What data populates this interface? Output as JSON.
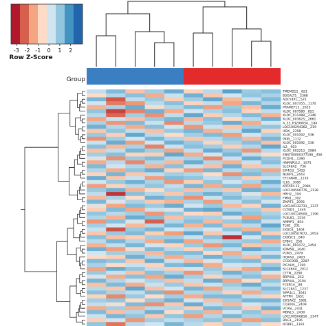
{
  "chart_data": {
    "type": "heatmap",
    "legend": {
      "title": "Row Z-Score",
      "ticks": [
        "-3",
        "-2",
        "-1",
        "0",
        "1",
        "2"
      ],
      "colors": [
        "#b2182b",
        "#d6604d",
        "#f4a582",
        "#fddbc7",
        "#d1e5f0",
        "#92c5de",
        "#4393c3",
        "#2166ac"
      ]
    },
    "group_label": "Group",
    "groups": [
      {
        "name": "",
        "color": "#3a7fc1",
        "count": 5
      },
      {
        "name": "",
        "color": "#e32b2b",
        "count": 5
      }
    ],
    "columns": 10,
    "genes": [
      "TMEM212__821",
      "B3GALT1__2368",
      "ADCY4P1__525",
      "XLOC_007355__1170",
      "PRAMEF13__2025",
      "XLOC_007580__851",
      "XLOC_011488__2346",
      "XLOC_003625__2661",
      "A_33_P3299054__184",
      "LOC100294362__219",
      "HDX__2358",
      "XLOC_001092__536",
      "PKIB__1112",
      "XLOC_001092__536",
      "IL2__903",
      "XLOC_002213__2984",
      "ENST00000377198__456",
      "PCDH1__1390",
      "HNRNPUL2__1075",
      "SLC46A2__736",
      "EIF4G3__1422",
      "NUBP1__2443",
      "EFCAB4B__1130",
      "IL18__3088",
      "KRTAP4.12__2084",
      "LOC100506776__2138",
      "HRH2__194",
      "FMN1__302",
      "ZMAT3__2095",
      "LOC100132731__1137",
      "CLTSD1__1445",
      "LOC100128509__1196",
      "PLSL81__1534",
      "AMMP1__854",
      "TLN1__231",
      "EXOC6__1404",
      "LOC100507672__2953",
      "EXOSC3__640",
      "EPB41__258",
      "XLOC_001072__2454",
      "KDM5B__2040",
      "PLIN3__2479",
      "HOXA9__2403",
      "CCDC90B__2287",
      "PICALM__1190",
      "SLC46A4__2012",
      "CTTN__2290",
      "BRP44L__212",
      "BRP44L__2104",
      "FCER1A__89",
      "SLC18A1__1237",
      "SIPA1L1__1642",
      "AFTPH__1651",
      "EIF2AK2__1901",
      "CD300E__2409",
      "VCAN__2431",
      "MBNL3__2430",
      "LOC100506816__2147",
      "BAG1__2196",
      "RCBB1__1181"
    ],
    "values": [
      [
        0.4,
        1.2,
        -0.6,
        0.8,
        1.5,
        -0.3,
        0.5,
        1.7,
        0.9,
        1.1
      ],
      [
        -0.2,
        0.6,
        1.1,
        -0.9,
        0.3,
        1.4,
        -0.5,
        0.2,
        1.0,
        0.7
      ],
      [
        1.3,
        -2.1,
        0.4,
        0.9,
        -0.4,
        0.8,
        1.6,
        -0.7,
        0.3,
        1.2
      ],
      [
        0.2,
        -1.6,
        -1.2,
        0.5,
        1.1,
        -0.3,
        0.4,
        -1.0,
        1.3,
        0.6
      ],
      [
        -0.8,
        0.7,
        1.5,
        -0.1,
        0.6,
        1.2,
        -1.1,
        0.9,
        -0.6,
        1.5
      ],
      [
        1.0,
        -2.4,
        -1.5,
        1.4,
        -0.9,
        0.2,
        0.7,
        1.1,
        -0.3,
        0.4
      ],
      [
        0.5,
        -1.9,
        0.8,
        -1.3,
        0.4,
        1.6,
        -0.4,
        0.6,
        1.2,
        -0.8
      ],
      [
        -1.0,
        0.3,
        -0.6,
        0.9,
        1.3,
        -0.7,
        1.1,
        -0.2,
        0.5,
        1.4
      ],
      [
        0.7,
        -1.2,
        1.2,
        0.3,
        -1.4,
        0.5,
        0.9,
        1.5,
        -0.9,
        0.2
      ],
      [
        1.4,
        0.6,
        -0.9,
        1.1,
        0.2,
        -1.2,
        0.3,
        -0.5,
        0.8,
        1.0
      ],
      [
        -0.5,
        1.0,
        0.4,
        -0.6,
        0.9,
        1.3,
        -0.8,
        0.4,
        1.6,
        -0.3
      ],
      [
        0.9,
        -0.4,
        1.6,
        0.5,
        -0.2,
        0.8,
        1.2,
        -1.1,
        0.2,
        0.7
      ],
      [
        -1.3,
        0.8,
        0.2,
        1.3,
        0.6,
        -0.5,
        0.5,
        1.0,
        -0.7,
        1.3
      ],
      [
        0.3,
        1.5,
        -1.1,
        0.2,
        1.4,
        0.9,
        -0.3,
        0.7,
        1.1,
        -0.6
      ],
      [
        1.1,
        -0.7,
        0.7,
        -1.5,
        0.3,
        1.1,
        0.8,
        -0.4,
        0.6,
        1.6
      ],
      [
        -0.6,
        0.4,
        1.3,
        0.8,
        -1.0,
        0.4,
        1.5,
        0.9,
        -1.2,
        0.5
      ],
      [
        0.8,
        1.1,
        -0.3,
        -0.4,
        1.6,
        -0.9,
        0.2,
        1.3,
        0.4,
        -0.2
      ],
      [
        0.1,
        -1.3,
        0.9,
        1.2,
        0.5,
        0.7,
        -1.4,
        0.3,
        1.5,
        0.9
      ],
      [
        -0.9,
        0.5,
        -1.4,
        0.6,
        -0.7,
        1.5,
        0.6,
        -0.8,
        0.3,
        1.1
      ],
      [
        1.2,
        0.2,
        0.6,
        -0.8,
        1.1,
        0.3,
        -0.6,
        1.4,
        -0.5,
        0.4
      ],
      [
        0.6,
        -0.9,
        1.0,
        1.5,
        -0.3,
        -1.1,
        1.3,
        0.5,
        0.9,
        -1.0
      ],
      [
        -0.3,
        1.3,
        -0.5,
        0.4,
        0.8,
        0.6,
        -0.2,
        -1.3,
        1.2,
        0.8
      ],
      [
        1.5,
        -0.5,
        0.3,
        -1.1,
        1.2,
        1.0,
        0.4,
        0.8,
        -0.4,
        0.3
      ],
      [
        0.2,
        0.9,
        1.4,
        0.7,
        -1.2,
        -0.4,
        1.0,
        0.2,
        0.7,
        1.5
      ],
      [
        -1.1,
        -0.3,
        0.5,
        1.0,
        0.4,
        1.3,
        -0.9,
        1.1,
        -1.0,
        0.6
      ],
      [
        0.9,
        1.4,
        -0.8,
        -0.2,
        0.7,
        -0.6,
        0.6,
        -0.5,
        1.4,
        1.2
      ],
      [
        0.4,
        -2.6,
        1.1,
        0.6,
        -0.5,
        0.9,
        1.4,
        0.8,
        0.1,
        -0.7
      ],
      [
        -0.7,
        0.7,
        -0.2,
        1.4,
        1.0,
        -1.3,
        0.3,
        1.2,
        0.6,
        0.9
      ],
      [
        1.3,
        0.1,
        0.7,
        -0.5,
        -0.8,
        0.7,
        -1.1,
        0.4,
        1.1,
        0.2
      ],
      [
        0.0,
        -1.0,
        1.2,
        0.9,
        1.5,
        0.2,
        0.9,
        -0.7,
        -0.3,
        1.4
      ],
      [
        -0.4,
        1.2,
        -1.0,
        0.3,
        0.1,
        1.4,
        1.6,
        0.6,
        0.8,
        -0.5
      ],
      [
        1.0,
        0.5,
        0.8,
        -1.2,
        0.9,
        -0.2,
        -0.4,
        1.5,
        1.0,
        0.7
      ],
      [
        0.6,
        -0.8,
        1.5,
        1.1,
        -0.6,
        0.8,
        0.7,
        0.1,
        -1.1,
        1.0
      ],
      [
        -1.2,
        1.1,
        0.1,
        -2.0,
        0.6,
        1.1,
        -0.7,
        0.9,
        1.3,
        0.3
      ],
      [
        0.8,
        0.2,
        -0.7,
        0.5,
        1.3,
        -0.8,
        1.2,
        -0.6,
        0.5,
        1.6
      ],
      [
        0.3,
        -2.2,
        0.9,
        1.3,
        0.2,
        0.5,
        0.2,
        1.0,
        -0.8,
        0.8
      ],
      [
        -0.5,
        0.9,
        1.2,
        -0.4,
        -1.1,
        1.6,
        -0.5,
        0.3,
        1.4,
        -0.4
      ],
      [
        1.1,
        -0.6,
        -0.4,
        0.8,
        0.8,
        0.3,
        1.1,
        -2.7,
        0.2,
        1.2
      ],
      [
        0.5,
        1.3,
        0.6,
        -0.9,
        1.4,
        -1.0,
        0.5,
        0.7,
        0.9,
        -0.9
      ],
      [
        -0.8,
        0.4,
        1.3,
        0.2,
        -0.3,
        0.9,
        -1.2,
        1.3,
        -0.5,
        0.6
      ],
      [
        1.4,
        -1.1,
        -0.1,
        1.2,
        0.5,
        -0.3,
        0.8,
        0.4,
        1.6,
        1.1
      ],
      [
        0.2,
        0.8,
        0.7,
        -0.7,
        1.1,
        1.2,
        -0.2,
        -0.9,
        0.4,
        0.3
      ],
      [
        -0.2,
        -0.4,
        1.4,
        0.6,
        -0.9,
        0.6,
        1.4,
        0.8,
        -0.6,
        1.3
      ],
      [
        1.2,
        1.0,
        -0.5,
        1.5,
        0.3,
        -0.7,
        0.1,
        1.1,
        1.2,
        -0.2
      ],
      [
        0.7,
        -0.2,
        0.3,
        -0.3,
        1.2,
        1.4,
        -0.9,
        0.2,
        0.3,
        0.9
      ],
      [
        -1.0,
        1.5,
        1.0,
        0.4,
        -0.4,
        0.1,
        0.9,
        -0.4,
        -1.0,
        1.5
      ],
      [
        0.9,
        0.3,
        -0.6,
        1.1,
        0.7,
        -1.2,
        0.6,
        1.4,
        0.8,
        0.1
      ],
      [
        0.1,
        -0.9,
        1.1,
        -1.0,
        1.5,
        0.8,
        -0.3,
        0.6,
        1.1,
        -0.8
      ],
      [
        1.3,
        0.6,
        0.2,
        0.7,
        -0.6,
        0.4,
        1.5,
        -1.0,
        -0.2,
        1.0
      ],
      [
        -0.6,
        1.2,
        -0.9,
        0.3,
        0.9,
        -0.5,
        0.3,
        0.9,
        1.5,
        0.4
      ],
      [
        0.5,
        -0.5,
        1.6,
        -0.6,
        0.2,
        1.3,
        -1.0,
        0.5,
        0.6,
        1.2
      ],
      [
        1.1,
        0.7,
        0.4,
        1.2,
        -1.3,
        0.6,
        0.7,
        -0.3,
        -0.9,
        0.7
      ],
      [
        -0.3,
        -1.4,
        0.9,
        -0.2,
        0.8,
        -0.9,
        1.2,
        1.2,
        0.4,
        -0.3
      ],
      [
        0.8,
        1.0,
        -0.2,
        0.9,
        1.4,
        0.2,
        -0.6,
        0.8,
        1.3,
        1.3
      ],
      [
        0.4,
        -0.1,
        1.2,
        -1.3,
        -0.5,
        1.5,
        0.4,
        -0.7,
        0.2,
        0.5
      ],
      [
        -0.9,
        0.8,
        -0.8,
        0.5,
        0.6,
        -0.4,
        1.3,
        1.0,
        -0.4,
        1.4
      ],
      [
        1.2,
        -0.6,
        0.6,
        1.4,
        -0.2,
        0.9,
        -0.8,
        0.2,
        1.0,
        -0.6
      ],
      [
        0.3,
        1.3,
        1.0,
        -0.5,
        1.0,
        -1.1,
        0.6,
        1.3,
        0.7,
        0.8
      ],
      [
        -0.4,
        0.2,
        -1.2,
        0.8,
        0.4,
        0.7,
        1.0,
        -0.5,
        -1.1,
        1.1
      ],
      [
        1.0,
        -1.7,
        0.5,
        0.2,
        1.3,
        0.5,
        -0.3,
        0.9,
        0.5,
        -0.2
      ]
    ]
  }
}
